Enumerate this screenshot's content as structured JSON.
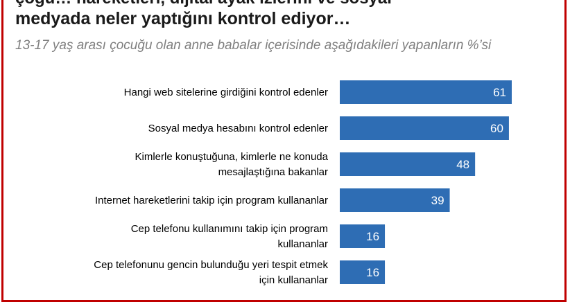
{
  "title_partial": "çoğu… hareketleri, dijital ayak izlerini ve sosyal",
  "title": "medyada neler yaptığını kontrol ediyor…",
  "subtitle": "13-17 yaş arası çocuğu olan anne babalar içerisinde aşağıdakileri yapanların %’si",
  "colors": {
    "bar": "#2e6db4",
    "border": "#c00000",
    "subtitle": "#7f7f7f"
  },
  "chart_data": {
    "type": "bar",
    "orientation": "horizontal",
    "categories": [
      [
        "Hangi web sitelerine girdiğini kontrol edenler"
      ],
      [
        "Sosyal medya hesabını kontrol edenler"
      ],
      [
        "Kimlerle konuştuğuna, kimlerle ne konuda",
        "mesajlaştığına bakanlar"
      ],
      [
        "Internet hareketlerini takip için program kullananlar"
      ],
      [
        "Cep telefonu kullanımını takip için program",
        "kullananlar"
      ],
      [
        "Cep telefonunu gencin bulunduğu yeri tespit etmek",
        "için kullananlar"
      ]
    ],
    "values": [
      61,
      60,
      48,
      39,
      16,
      16
    ],
    "xlim": [
      0,
      61
    ],
    "grid": false,
    "legend": "none"
  }
}
